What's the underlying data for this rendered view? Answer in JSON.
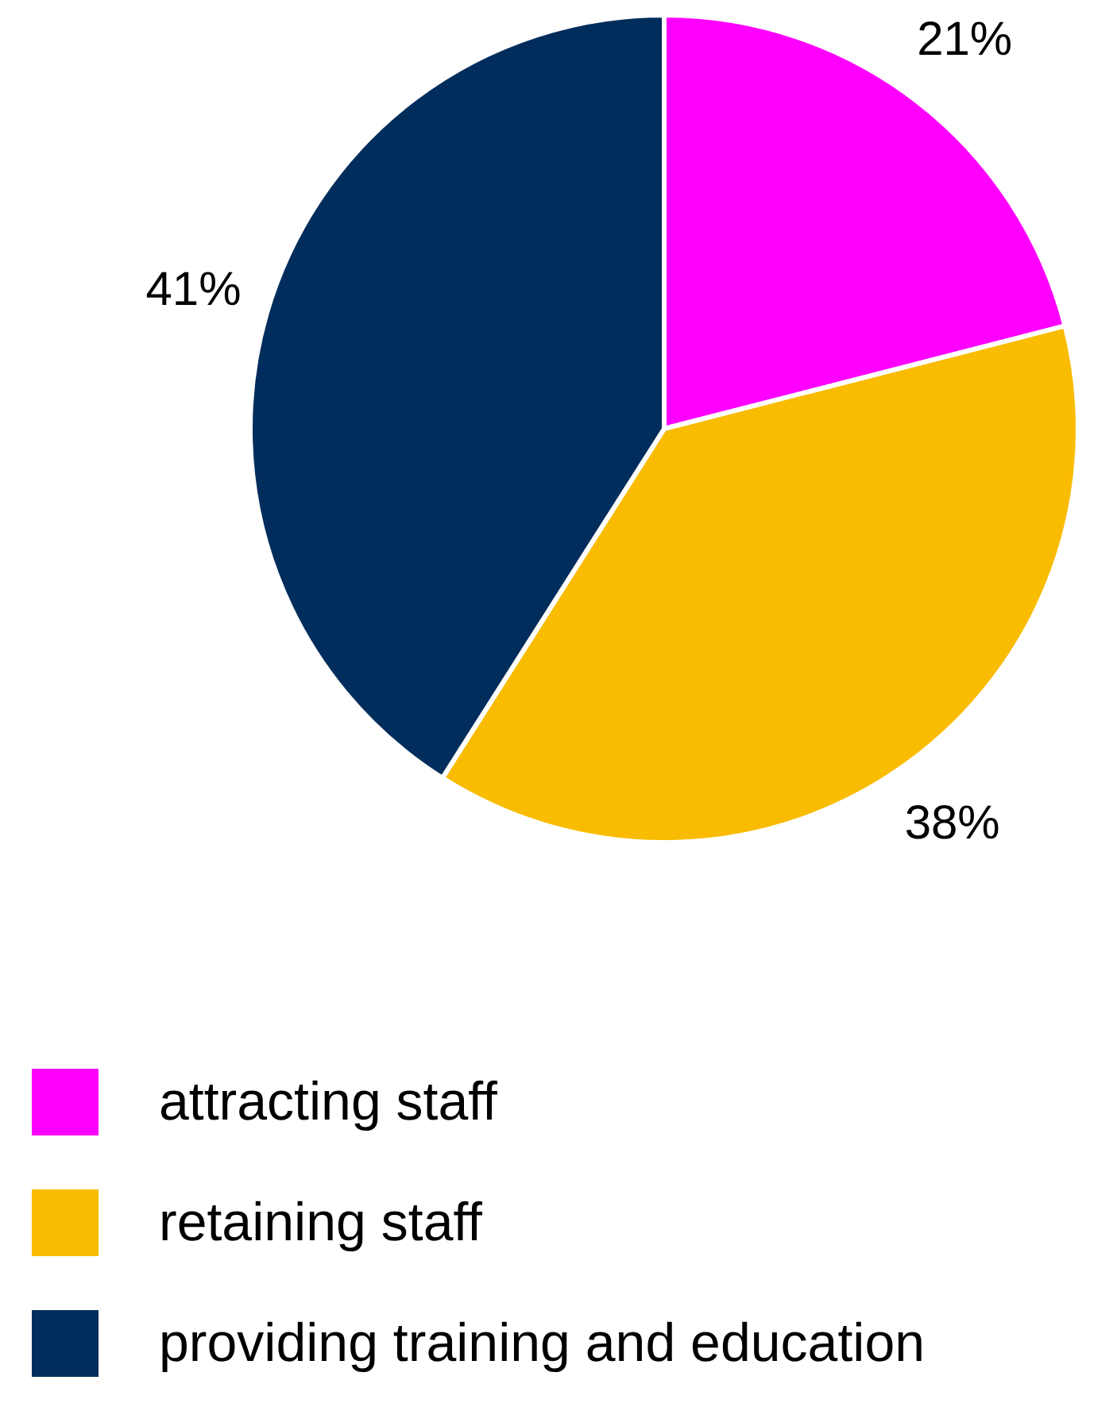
{
  "chart_data": {
    "type": "pie",
    "categories": [
      "attracting staff",
      "retaining staff",
      "providing training and education"
    ],
    "values": [
      21,
      38,
      41
    ],
    "value_labels": [
      "21%",
      "38%",
      "41%"
    ],
    "colors": [
      "#ff00ff",
      "#f9bc00",
      "#002d5c"
    ],
    "legend": "bottom"
  }
}
